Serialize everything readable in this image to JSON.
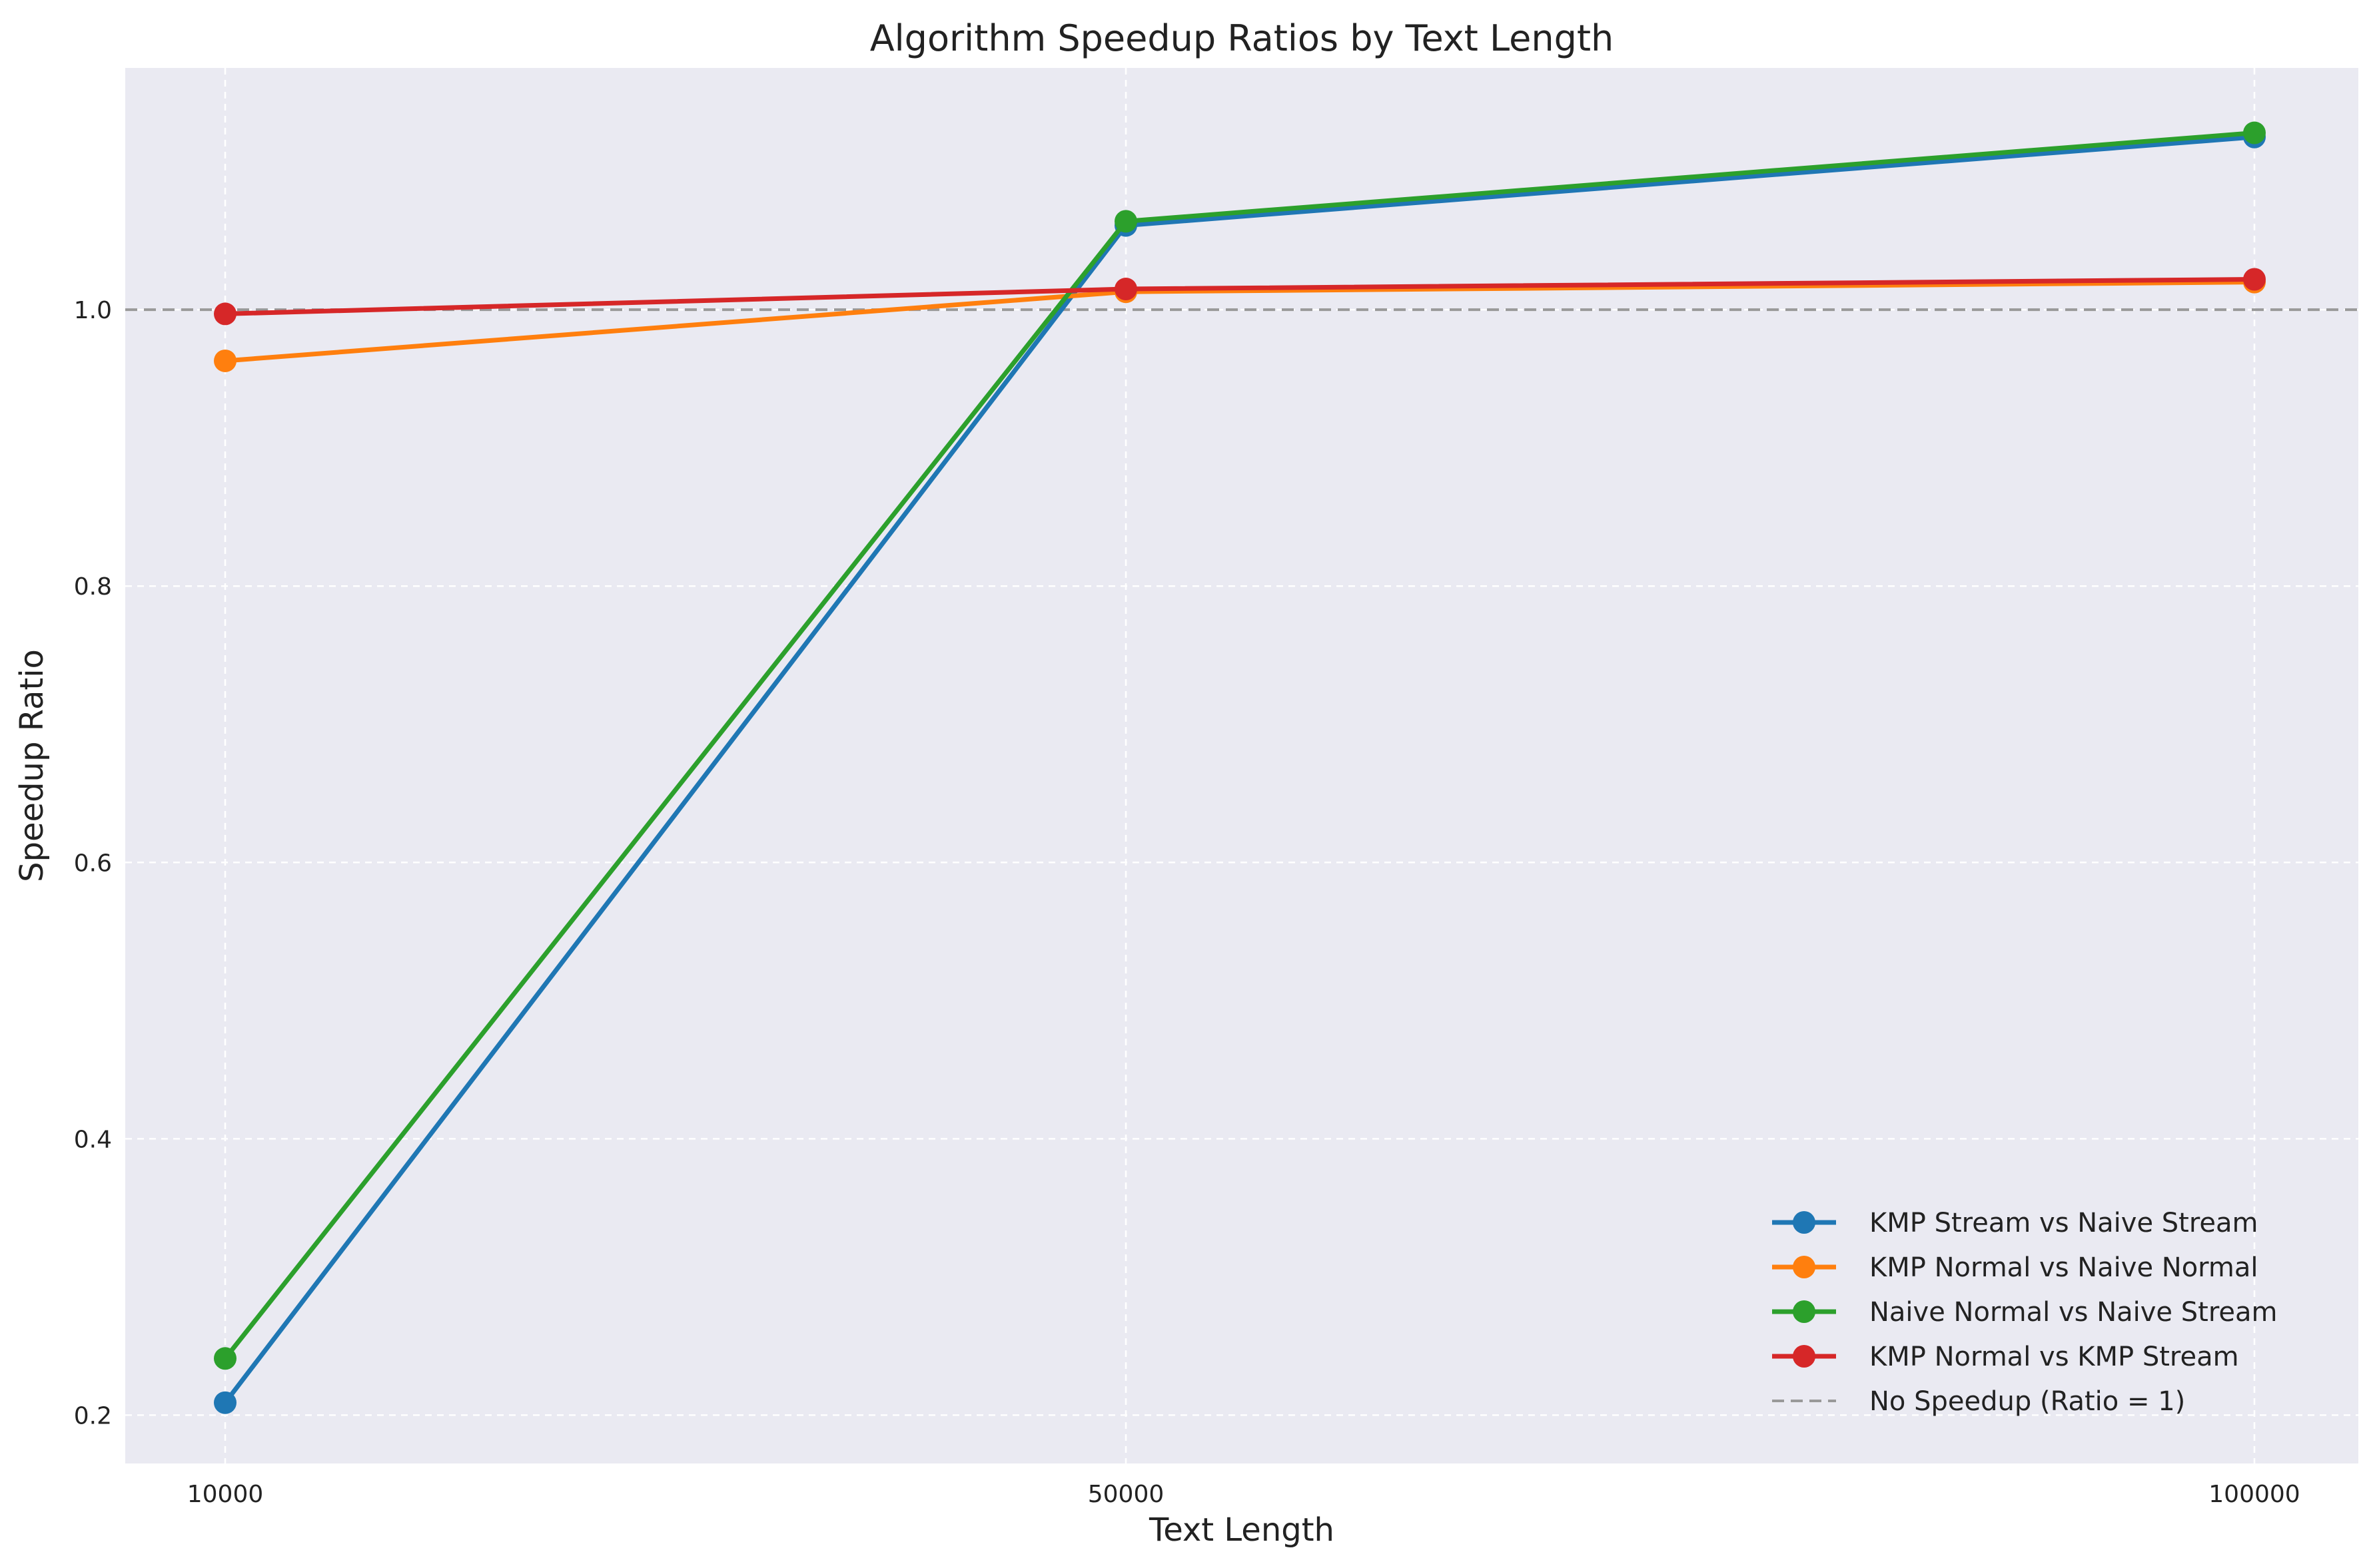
{
  "chart_data": {
    "type": "line",
    "title": "Algorithm Speedup Ratios by Text Length",
    "xlabel": "Text Length",
    "ylabel": "Speedup Ratio",
    "x": [
      10000,
      50000,
      100000
    ],
    "x_tick_labels": [
      "10000",
      "50000",
      "100000"
    ],
    "y_ticks": [
      0.2,
      0.4,
      0.6,
      0.8,
      1.0
    ],
    "y_tick_labels": [
      "0.2",
      "0.4",
      "0.6",
      "0.8",
      "1.0"
    ],
    "ylim": [
      0.165,
      1.175
    ],
    "grid": true,
    "legend_position": "lower-right",
    "series": [
      {
        "name": "KMP Stream vs Naive Stream",
        "color": "#1f77b4",
        "values": [
          0.209,
          1.061,
          1.125
        ]
      },
      {
        "name": "KMP Normal vs Naive Normal",
        "color": "#ff7f0e",
        "values": [
          0.963,
          1.013,
          1.02
        ]
      },
      {
        "name": "Naive Normal vs Naive Stream",
        "color": "#2ca02c",
        "values": [
          0.241,
          1.064,
          1.128
        ]
      },
      {
        "name": "KMP Normal vs KMP Stream",
        "color": "#d62728",
        "values": [
          0.997,
          1.015,
          1.022
        ]
      }
    ],
    "reference_line": {
      "name": "No Speedup (Ratio = 1)",
      "value": 1.0,
      "color": "#999999",
      "style": "dashed"
    }
  }
}
